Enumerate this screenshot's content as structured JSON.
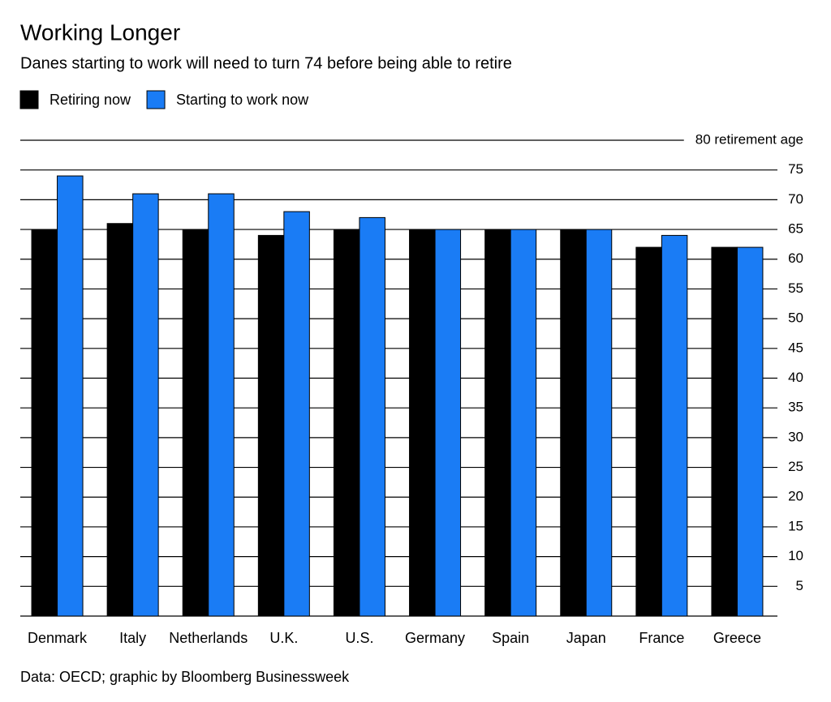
{
  "chart_data": {
    "type": "bar",
    "title": "Working Longer",
    "subtitle": "Danes starting to work will need to turn 74 before being able to retire",
    "source": "Data: OECD; graphic by Bloomberg Businessweek",
    "categories": [
      "Denmark",
      "Italy",
      "Netherlands",
      "U.K.",
      "U.S.",
      "Germany",
      "Spain",
      "Japan",
      "France",
      "Greece"
    ],
    "series": [
      {
        "name": "Retiring now",
        "color": "#000000",
        "values": [
          65,
          66,
          65,
          64,
          65,
          65,
          65,
          65,
          62,
          62
        ]
      },
      {
        "name": "Starting to work now",
        "color": "#1a7cf5",
        "values": [
          74,
          71,
          71,
          68,
          67,
          65,
          65,
          65,
          64,
          62
        ]
      }
    ],
    "ylim": [
      0,
      80
    ],
    "yticks": [
      5,
      10,
      15,
      20,
      25,
      30,
      35,
      40,
      45,
      50,
      55,
      60,
      65,
      70,
      75,
      {
        "value": 80,
        "label": "80 retirement age"
      }
    ],
    "grid": true
  }
}
